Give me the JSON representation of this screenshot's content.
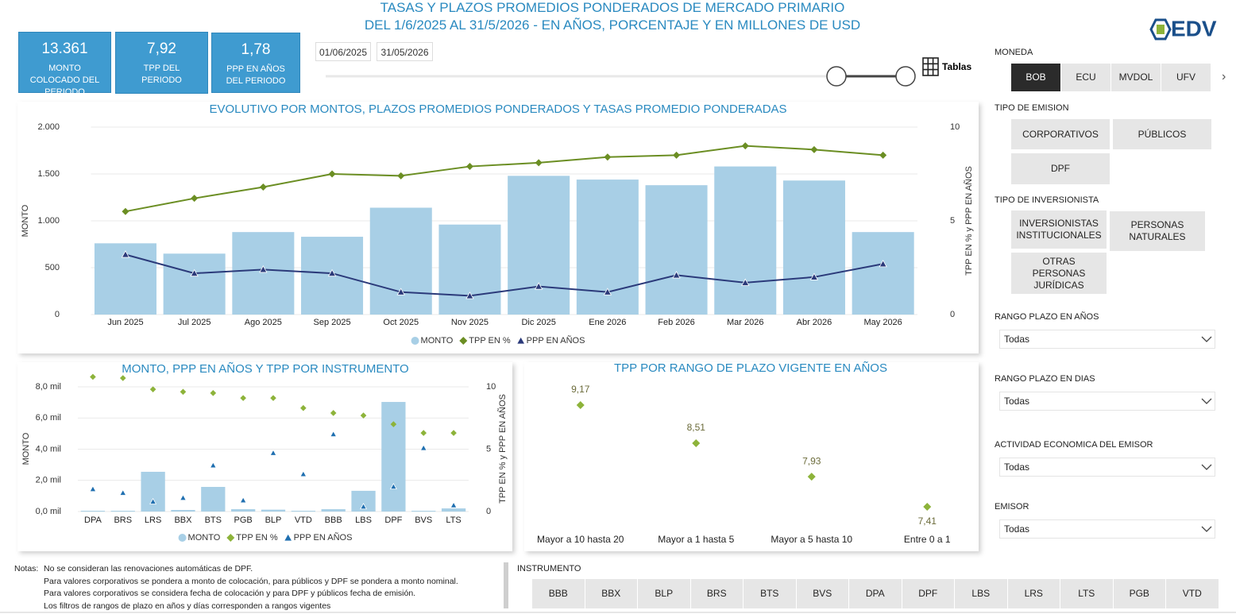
{
  "header": {
    "title_lines": [
      "TASAS Y PLAZOS PROMEDIOS PONDERADOS DE MERCADO PRIMARIO",
      "DEL 1/6/2025 AL 31/5/2026 - EN AÑOS, PORCENTAJE Y EN MILLONES DE USD"
    ],
    "logo": "EDV"
  },
  "kpis": [
    {
      "value": "13.361",
      "label": "MONTO COLOCADO DEL PERIODO"
    },
    {
      "value": "7,92",
      "label": "TPP DEL PERIODO"
    },
    {
      "value": "1,78",
      "label": "PPP EN AÑOS DEL PERIODO"
    }
  ],
  "date_range": {
    "start": "01/06/2025",
    "end": "31/05/2026"
  },
  "tables_button": "Tablas",
  "filters": {
    "moneda": {
      "label": "MONEDA",
      "options": [
        "BOB",
        "ECU",
        "MVDOL",
        "UFV"
      ],
      "selected": 0
    },
    "tipo_emision": {
      "label": "TIPO DE EMISION",
      "options": [
        "CORPORATIVOS",
        "PÚBLICOS",
        "DPF"
      ]
    },
    "tipo_inversionista": {
      "label": "TIPO DE INVERSIONISTA",
      "options": [
        "INVERSIONISTAS INSTITUCIONALES",
        "PERSONAS NATURALES",
        "OTRAS PERSONAS JURÍDICAS"
      ]
    },
    "dropdowns": [
      {
        "label": "RANGO PLAZO EN AÑOS",
        "value": "Todas"
      },
      {
        "label": "RANGO PLAZO EN DIAS",
        "value": "Todas"
      },
      {
        "label": "ACTIVIDAD ECONOMICA DEL EMISOR",
        "value": "Todas"
      },
      {
        "label": "EMISOR",
        "value": "Todas"
      }
    ]
  },
  "notes": {
    "label": "Notas:",
    "lines": [
      "No se consideran las renovaciones automáticas de DPF.",
      "Para valores corporativos se pondera a monto de colocación, para públicos y DPF se pondera a monto nominal.",
      "Para valores corporativos se considera fecha de colocación y para DPF y públicos fecha de emisión.",
      "Los filtros de rangos de plazo en años y días corresponden a rangos vigentes"
    ]
  },
  "instrumento": {
    "label": "INSTRUMENTO",
    "options": [
      "BBB",
      "BBX",
      "BLP",
      "BRS",
      "BTS",
      "BVS",
      "DPA",
      "DPF",
      "LBS",
      "LRS",
      "LTS",
      "PGB",
      "VTD"
    ]
  },
  "chart_data": [
    {
      "type": "combo",
      "title": "EVOLUTIVO POR MONTOS, PLAZOS PROMEDIOS PONDERADOS Y TASAS PROMEDIO PONDERADAS",
      "ylabel": "MONTO",
      "y2label": "TPP EN % y PPP EN AÑOS",
      "categories": [
        "Jun 2025",
        "Jul 2025",
        "Ago 2025",
        "Sep 2025",
        "Oct 2025",
        "Nov 2025",
        "Dic 2025",
        "Ene 2026",
        "Feb 2026",
        "Mar 2026",
        "Abr 2026",
        "May 2026"
      ],
      "series": [
        {
          "name": "MONTO",
          "color": "#a8cfe6",
          "kind": "bar",
          "marker": "circle",
          "values": [
            760,
            650,
            880,
            830,
            1140,
            960,
            1480,
            1440,
            1380,
            1580,
            1430,
            880
          ]
        },
        {
          "name": "TPP EN %",
          "color": "#6b8e23",
          "kind": "line",
          "marker": "diamond",
          "axis": "y2",
          "values": [
            5.5,
            6.2,
            6.8,
            7.5,
            7.4,
            7.9,
            8.1,
            8.4,
            8.5,
            9.0,
            8.8,
            8.5
          ]
        },
        {
          "name": "PPP EN AÑOS",
          "color": "#2b3a7a",
          "kind": "line",
          "marker": "triangle",
          "axis": "y2",
          "values": [
            3.2,
            2.2,
            2.4,
            2.2,
            1.2,
            1.0,
            1.5,
            1.2,
            2.1,
            1.7,
            2.0,
            2.7
          ]
        }
      ],
      "ylim": [
        0,
        2000
      ],
      "yticks": [
        0,
        500,
        {
          "value": 1000,
          "label": "1.000"
        },
        {
          "value": 1500,
          "label": "1.500"
        },
        {
          "value": 2000,
          "label": "2.000"
        }
      ],
      "y2lim": [
        0,
        10
      ],
      "y2ticks": [
        0,
        5,
        10
      ],
      "grid": true
    },
    {
      "type": "combo",
      "title": "MONTO, PPP EN AÑOS Y TPP POR INSTRUMENTO",
      "ylabel": "MONTO",
      "y2label": "TPP EN % y PPP EN AÑOS",
      "categories": [
        "DPA",
        "BRS",
        "LRS",
        "BBX",
        "BTS",
        "PGB",
        "BLP",
        "VTD",
        "BBB",
        "LBS",
        "DPF",
        "BVS",
        "LTS"
      ],
      "series": [
        {
          "name": "MONTO",
          "color": "#a8cfe6",
          "kind": "bar",
          "marker": "circle",
          "values": [
            50,
            50,
            2550,
            100,
            1580,
            150,
            120,
            50,
            150,
            1330,
            7030,
            50,
            200
          ]
        },
        {
          "name": "TPP EN %",
          "color": "#8db33a",
          "kind": "points",
          "marker": "diamond",
          "axis": "y2",
          "values": [
            10.8,
            10.7,
            9.8,
            9.6,
            9.5,
            9.1,
            9.1,
            8.3,
            7.9,
            7.7,
            7.0,
            6.3,
            6.3
          ]
        },
        {
          "name": "PPP EN AÑOS",
          "color": "#1f6fb0",
          "kind": "points",
          "marker": "triangle",
          "axis": "y2",
          "values": [
            1.8,
            1.5,
            0.8,
            1.1,
            3.7,
            0.9,
            4.7,
            3.0,
            6.2,
            0.4,
            2.0,
            5.1,
            0.5
          ]
        }
      ],
      "ylim": [
        0,
        8000
      ],
      "yticks": [
        {
          "value": 0,
          "label": "0,0 mil"
        },
        {
          "value": 2000,
          "label": "2,0 mil"
        },
        {
          "value": 4000,
          "label": "4,0 mil"
        },
        {
          "value": 6000,
          "label": "6,0 mil"
        },
        {
          "value": 8000,
          "label": "8,0 mil"
        }
      ],
      "y2lim": [
        0,
        10
      ],
      "y2ticks": [
        0,
        5,
        10
      ],
      "grid": true
    },
    {
      "type": "dot",
      "title": "TPP POR RANGO DE PLAZO VIGENTE EN AÑOS",
      "categories": [
        "Mayor a 10 hasta 20",
        "Mayor a 1 hasta 5",
        "Mayor a 5 hasta 10",
        "Entre 0 a 1"
      ],
      "values": [
        9.17,
        8.51,
        7.93,
        7.41
      ],
      "value_labels": [
        "9,17",
        "8,51",
        "7,93",
        "7,41"
      ],
      "color": "#8db33a"
    }
  ]
}
